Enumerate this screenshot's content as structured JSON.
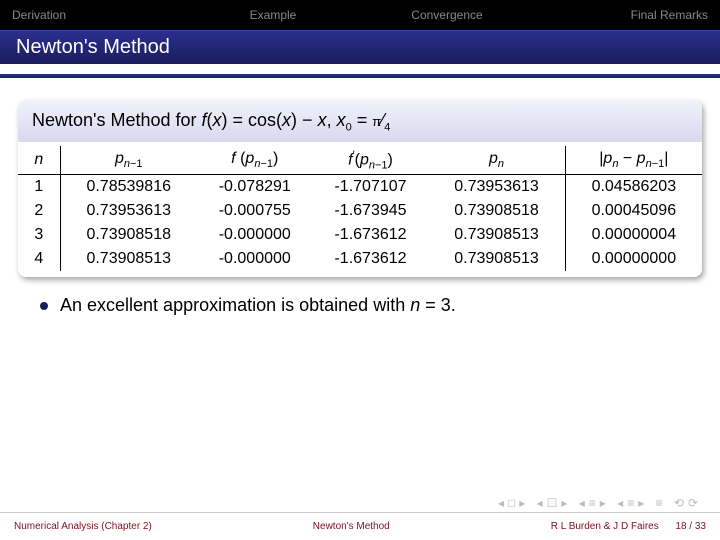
{
  "nav": {
    "a": "Derivation",
    "b": "Example",
    "c": "Convergence",
    "d": "Final Remarks"
  },
  "title": "Newton's Method",
  "panel_title_html": "Newton's Method for <span class='ital'>f</span>(<span class='ital'>x</span>) = cos(<span class='ital'>x</span>) − <span class='ital'>x</span>, <span class='ital'>x</span><span class='sub'>0</span> = <span style='font-size:13px'>π</span>⁄<span class='sub'>4</span>",
  "headers": {
    "c1": "<span class='ital'>n</span>",
    "c2": "<span class='ital'>p</span><span class='sub'><span class='ital'>n</span>−1</span>",
    "c3": "<span class='ital'>f</span> (<span class='ital'>p</span><span class='sub'><span class='ital'>n</span>−1</span>)",
    "c4": "<span class='ital'>f</span><span class='sup'>′</span>(<span class='ital'>p</span><span class='sub'><span class='ital'>n</span>−1</span>)",
    "c5": "<span class='ital'>p</span><span class='sub'><span class='ital'>n</span></span>",
    "c6": "|<span class='ital'>p</span><span class='sub'><span class='ital'>n</span></span> − <span class='ital'>p</span><span class='sub'><span class='ital'>n</span>−1</span>|"
  },
  "rows": [
    {
      "n": "1",
      "p": "0.78539816",
      "f": "-0.078291",
      "fp": "-1.707107",
      "pn": "0.73953613",
      "d": "0.04586203"
    },
    {
      "n": "2",
      "p": "0.73953613",
      "f": "-0.000755",
      "fp": "-1.673945",
      "pn": "0.73908518",
      "d": "0.00045096"
    },
    {
      "n": "3",
      "p": "0.73908518",
      "f": "-0.000000",
      "fp": "-1.673612",
      "pn": "0.73908513",
      "d": "0.00000004"
    },
    {
      "n": "4",
      "p": "0.73908513",
      "f": "-0.000000",
      "fp": "-1.673612",
      "pn": "0.73908513",
      "d": "0.00000000"
    }
  ],
  "bullet_html": "An excellent approximation is obtained with <span class='ital'>n</span> = 3.",
  "footer": {
    "left": "Numerical Analysis (Chapter 2)",
    "center": "Newton's Method",
    "right_a": "R L Burden & J D Faires",
    "right_b": "18 / 33"
  },
  "navicons": "◂□▸ ◂☐▸ ◂≡▸ ◂≡▸  ≡  ⟲⟳"
}
